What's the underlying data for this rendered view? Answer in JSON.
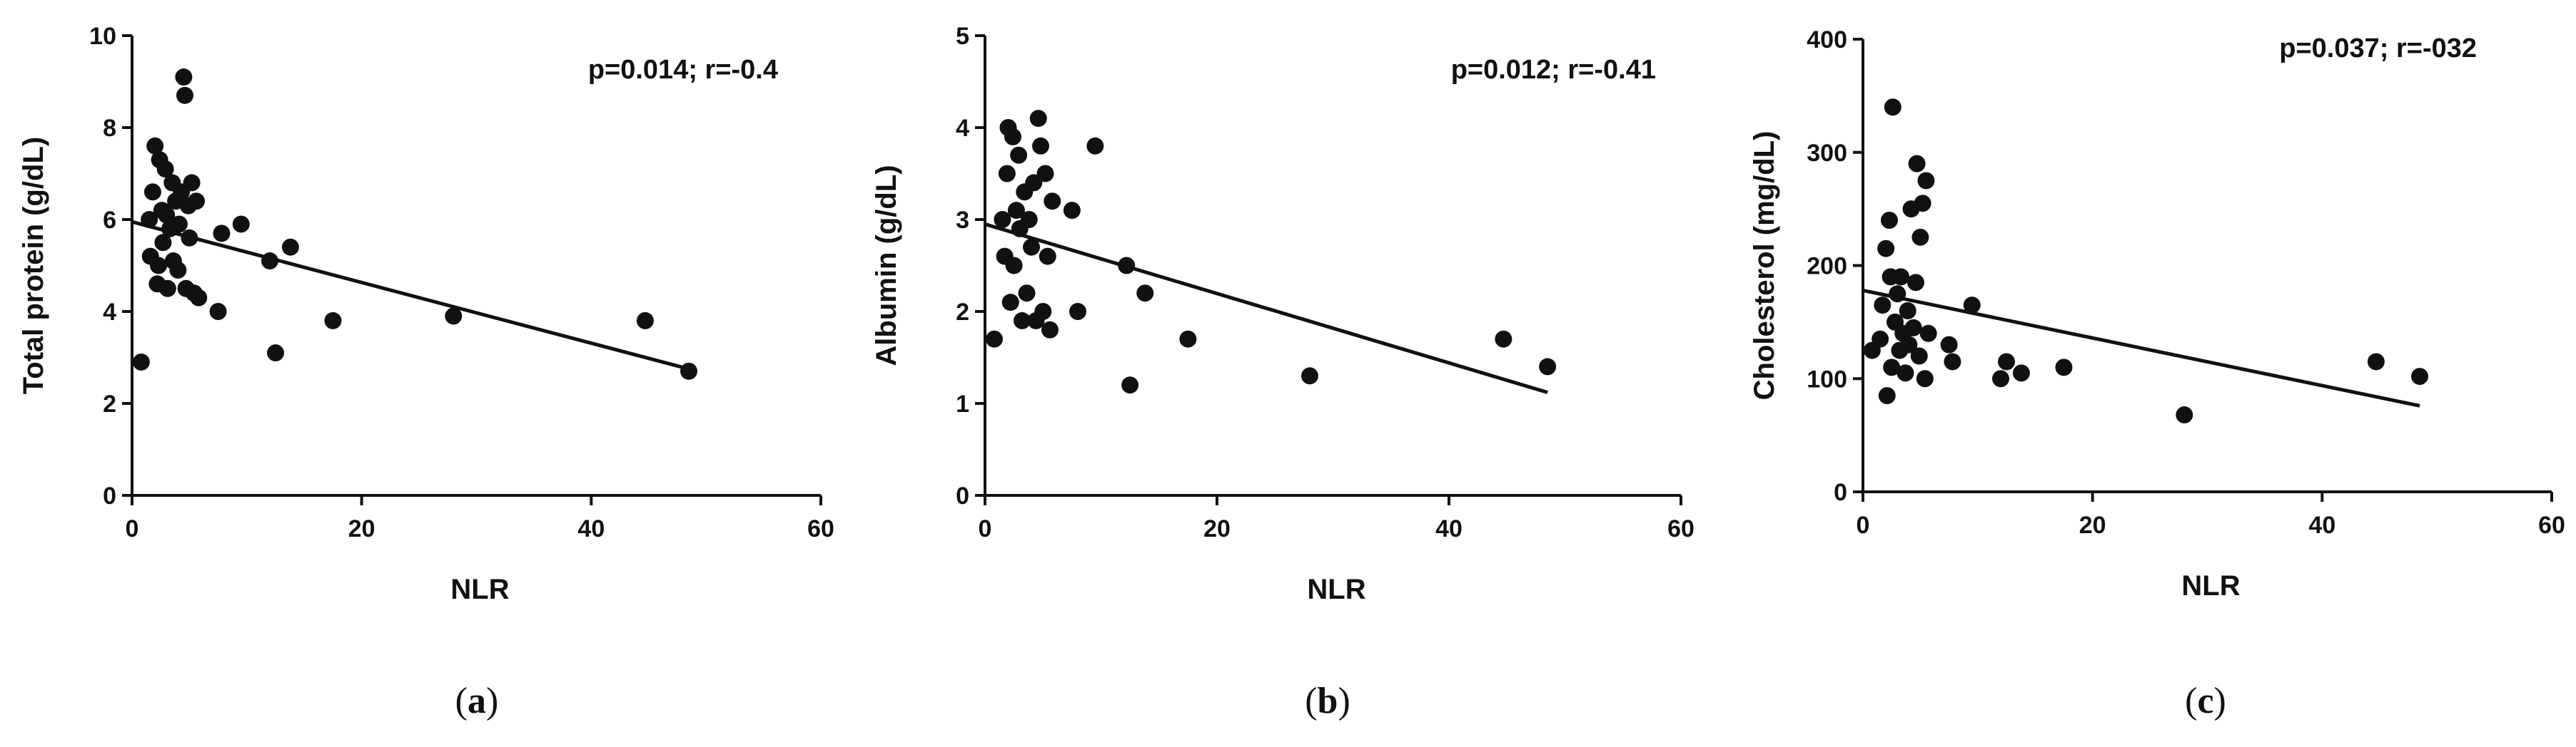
{
  "chart_data": [
    {
      "type": "scatter",
      "caption": "a",
      "xlabel": "NLR",
      "ylabel": "Total protein (g/dL)",
      "annotation": "p=0.014; r=-0.4",
      "xlim": [
        0,
        60
      ],
      "ylim": [
        0,
        10
      ],
      "xticks": [
        "0",
        "20",
        "40",
        "60"
      ],
      "yticks": [
        "0",
        "2",
        "4",
        "6",
        "8",
        "10"
      ],
      "fit_line": {
        "x": [
          0,
          48.5
        ],
        "y": [
          5.95,
          2.75
        ]
      },
      "points": [
        {
          "x": 0.8,
          "y": 2.9
        },
        {
          "x": 1.5,
          "y": 6.0
        },
        {
          "x": 1.6,
          "y": 5.2
        },
        {
          "x": 1.8,
          "y": 6.6
        },
        {
          "x": 2.0,
          "y": 7.6
        },
        {
          "x": 2.2,
          "y": 4.6
        },
        {
          "x": 2.3,
          "y": 5.0
        },
        {
          "x": 2.4,
          "y": 7.3
        },
        {
          "x": 2.6,
          "y": 6.2
        },
        {
          "x": 2.7,
          "y": 5.5
        },
        {
          "x": 2.9,
          "y": 7.1
        },
        {
          "x": 3.0,
          "y": 6.1
        },
        {
          "x": 3.1,
          "y": 4.5
        },
        {
          "x": 3.3,
          "y": 5.8
        },
        {
          "x": 3.5,
          "y": 6.8
        },
        {
          "x": 3.6,
          "y": 5.1
        },
        {
          "x": 3.8,
          "y": 6.4
        },
        {
          "x": 4.0,
          "y": 4.9
        },
        {
          "x": 4.1,
          "y": 5.9
        },
        {
          "x": 4.3,
          "y": 6.6
        },
        {
          "x": 4.5,
          "y": 9.1
        },
        {
          "x": 4.6,
          "y": 8.7
        },
        {
          "x": 4.7,
          "y": 4.5
        },
        {
          "x": 4.9,
          "y": 6.3
        },
        {
          "x": 5.0,
          "y": 5.6
        },
        {
          "x": 5.2,
          "y": 6.8
        },
        {
          "x": 5.4,
          "y": 4.4
        },
        {
          "x": 5.6,
          "y": 6.4
        },
        {
          "x": 5.8,
          "y": 4.3
        },
        {
          "x": 7.5,
          "y": 4.0
        },
        {
          "x": 7.8,
          "y": 5.7
        },
        {
          "x": 9.5,
          "y": 5.9
        },
        {
          "x": 12.0,
          "y": 5.1
        },
        {
          "x": 12.5,
          "y": 3.1
        },
        {
          "x": 13.8,
          "y": 5.4
        },
        {
          "x": 17.5,
          "y": 3.8
        },
        {
          "x": 28.0,
          "y": 3.9
        },
        {
          "x": 44.7,
          "y": 3.8
        },
        {
          "x": 48.5,
          "y": 2.7
        }
      ]
    },
    {
      "type": "scatter",
      "caption": "b",
      "xlabel": "NLR",
      "ylabel": "Albumin (g/dL)",
      "annotation": "p=0.012; r=-0.41",
      "xlim": [
        0,
        60
      ],
      "ylim": [
        0,
        5
      ],
      "xticks": [
        "0",
        "20",
        "40",
        "60"
      ],
      "yticks": [
        "0",
        "1",
        "2",
        "3",
        "4",
        "5"
      ],
      "fit_line": {
        "x": [
          0,
          48.5
        ],
        "y": [
          2.95,
          1.12
        ]
      },
      "points": [
        {
          "x": 0.8,
          "y": 1.7
        },
        {
          "x": 1.5,
          "y": 3.0
        },
        {
          "x": 1.7,
          "y": 2.6
        },
        {
          "x": 1.9,
          "y": 3.5
        },
        {
          "x": 2.0,
          "y": 4.0
        },
        {
          "x": 2.2,
          "y": 2.1
        },
        {
          "x": 2.4,
          "y": 3.9
        },
        {
          "x": 2.5,
          "y": 2.5
        },
        {
          "x": 2.7,
          "y": 3.1
        },
        {
          "x": 2.9,
          "y": 3.7
        },
        {
          "x": 3.0,
          "y": 2.9
        },
        {
          "x": 3.2,
          "y": 1.9
        },
        {
          "x": 3.4,
          "y": 3.3
        },
        {
          "x": 3.6,
          "y": 2.2
        },
        {
          "x": 3.8,
          "y": 3.0
        },
        {
          "x": 4.0,
          "y": 2.7
        },
        {
          "x": 4.2,
          "y": 3.4
        },
        {
          "x": 4.4,
          "y": 1.9
        },
        {
          "x": 4.6,
          "y": 4.1
        },
        {
          "x": 4.8,
          "y": 3.8
        },
        {
          "x": 5.0,
          "y": 2.0
        },
        {
          "x": 5.2,
          "y": 3.5
        },
        {
          "x": 5.4,
          "y": 2.6
        },
        {
          "x": 5.6,
          "y": 1.8
        },
        {
          "x": 5.8,
          "y": 3.2
        },
        {
          "x": 7.5,
          "y": 3.1
        },
        {
          "x": 8.0,
          "y": 2.0
        },
        {
          "x": 9.5,
          "y": 3.8
        },
        {
          "x": 12.2,
          "y": 2.5
        },
        {
          "x": 12.5,
          "y": 1.2
        },
        {
          "x": 13.8,
          "y": 2.2
        },
        {
          "x": 17.5,
          "y": 1.7
        },
        {
          "x": 28.0,
          "y": 1.3
        },
        {
          "x": 44.7,
          "y": 1.7
        },
        {
          "x": 48.5,
          "y": 1.4
        }
      ]
    },
    {
      "type": "scatter",
      "caption": "c",
      "xlabel": "NLR",
      "ylabel": "Cholesterol (mg/dL)",
      "annotation": "p=0.037; r=-032",
      "xlim": [
        0,
        60
      ],
      "ylim": [
        0,
        400
      ],
      "xticks": [
        "0",
        "20",
        "40",
        "60"
      ],
      "yticks": [
        "0",
        "100",
        "200",
        "300",
        "400"
      ],
      "fit_line": {
        "x": [
          0,
          48.5
        ],
        "y": [
          178,
          76
        ]
      },
      "points": [
        {
          "x": 0.8,
          "y": 125
        },
        {
          "x": 1.5,
          "y": 135
        },
        {
          "x": 1.7,
          "y": 165
        },
        {
          "x": 2.0,
          "y": 215
        },
        {
          "x": 2.1,
          "y": 85
        },
        {
          "x": 2.3,
          "y": 240
        },
        {
          "x": 2.4,
          "y": 190
        },
        {
          "x": 2.5,
          "y": 110
        },
        {
          "x": 2.6,
          "y": 340
        },
        {
          "x": 2.8,
          "y": 150
        },
        {
          "x": 3.0,
          "y": 175
        },
        {
          "x": 3.2,
          "y": 125
        },
        {
          "x": 3.3,
          "y": 190
        },
        {
          "x": 3.5,
          "y": 140
        },
        {
          "x": 3.7,
          "y": 105
        },
        {
          "x": 3.9,
          "y": 160
        },
        {
          "x": 4.0,
          "y": 130
        },
        {
          "x": 4.2,
          "y": 250
        },
        {
          "x": 4.4,
          "y": 145
        },
        {
          "x": 4.6,
          "y": 185
        },
        {
          "x": 4.7,
          "y": 290
        },
        {
          "x": 4.9,
          "y": 120
        },
        {
          "x": 5.0,
          "y": 225
        },
        {
          "x": 5.2,
          "y": 255
        },
        {
          "x": 5.4,
          "y": 100
        },
        {
          "x": 5.5,
          "y": 275
        },
        {
          "x": 5.7,
          "y": 140
        },
        {
          "x": 7.5,
          "y": 130
        },
        {
          "x": 7.8,
          "y": 115
        },
        {
          "x": 9.5,
          "y": 165
        },
        {
          "x": 12.0,
          "y": 100
        },
        {
          "x": 12.5,
          "y": 115
        },
        {
          "x": 13.8,
          "y": 105
        },
        {
          "x": 17.5,
          "y": 110
        },
        {
          "x": 28.0,
          "y": 68
        },
        {
          "x": 44.7,
          "y": 115
        },
        {
          "x": 48.5,
          "y": 102
        }
      ]
    }
  ]
}
